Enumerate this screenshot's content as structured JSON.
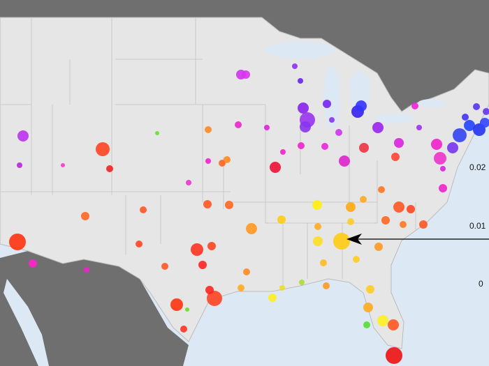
{
  "legend_labels": [
    "0.02",
    "0.01",
    "0"
  ]
}
